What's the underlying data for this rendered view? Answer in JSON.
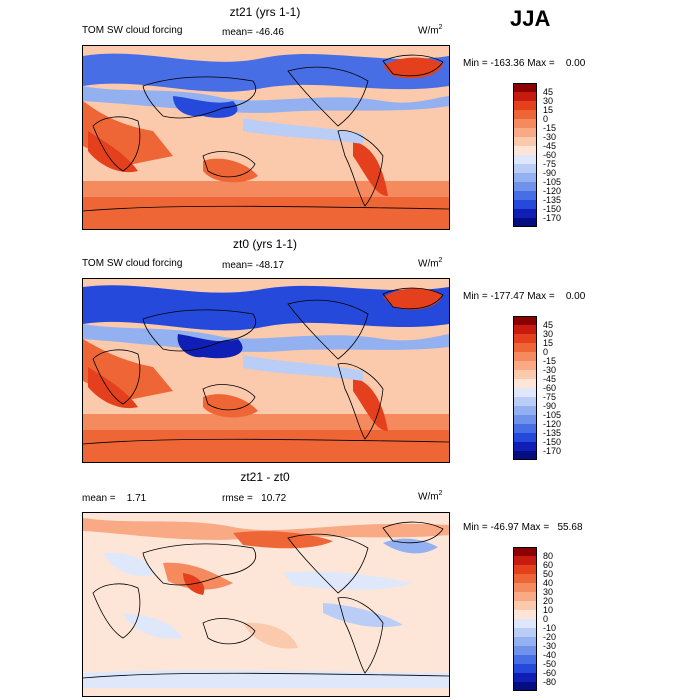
{
  "season": "JJA",
  "panels": [
    {
      "title": "zt21 (yrs 1-1)",
      "var_label": "TOM SW cloud forcing",
      "stat1": "mean= -46.46",
      "stat2": "",
      "units_base": "W/m",
      "units_exp": "2",
      "minmax": "Min = -163.36 Max =    0.00",
      "levels": [
        "45",
        "30",
        "15",
        "0",
        "-15",
        "-30",
        "-45",
        "-60",
        "-75",
        "-90",
        "-105",
        "-120",
        "-135",
        "-150",
        "-170"
      ],
      "colors": [
        "#8b0000",
        "#c81b0f",
        "#e4401d",
        "#ee6636",
        "#f48a5e",
        "#f9aa84",
        "#fbc9ac",
        "#fde6d8",
        "#dfe8fb",
        "#b9cdf7",
        "#93b0f1",
        "#6f92ea",
        "#476ee4",
        "#2449db",
        "#0f1fb5",
        "#050d82"
      ]
    },
    {
      "title": "zt0 (yrs 1-1)",
      "var_label": "TOM SW cloud forcing",
      "stat1": "mean= -48.17",
      "stat2": "",
      "units_base": "W/m",
      "units_exp": "2",
      "minmax": "Min = -177.47 Max =    0.00",
      "levels": [
        "45",
        "30",
        "15",
        "0",
        "-15",
        "-30",
        "-45",
        "-60",
        "-75",
        "-90",
        "-105",
        "-120",
        "-135",
        "-150",
        "-170"
      ],
      "colors": [
        "#8b0000",
        "#c81b0f",
        "#e4401d",
        "#ee6636",
        "#f48a5e",
        "#f9aa84",
        "#fbc9ac",
        "#fde6d8",
        "#dfe8fb",
        "#b9cdf7",
        "#93b0f1",
        "#6f92ea",
        "#476ee4",
        "#2449db",
        "#0f1fb5",
        "#050d82"
      ]
    },
    {
      "title": "zt21 - zt0",
      "var_label": "",
      "stat1": "mean =    1.71",
      "stat2": "rmse =   10.72",
      "units_base": "W/m",
      "units_exp": "2",
      "minmax": "Min = -46.97 Max =   55.68",
      "levels": [
        "80",
        "60",
        "50",
        "40",
        "30",
        "20",
        "10",
        "0",
        "-10",
        "-20",
        "-30",
        "-40",
        "-50",
        "-60",
        "-80"
      ],
      "colors": [
        "#8b0000",
        "#c81b0f",
        "#e4401d",
        "#ee6636",
        "#f48a5e",
        "#f9aa84",
        "#fbc9ac",
        "#fde6d8",
        "#dfe8fb",
        "#b9cdf7",
        "#93b0f1",
        "#6f92ea",
        "#476ee4",
        "#2449db",
        "#0f1fb5",
        "#050d82"
      ]
    }
  ]
}
